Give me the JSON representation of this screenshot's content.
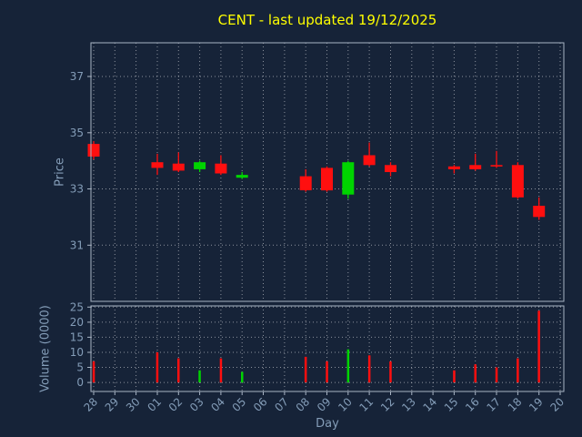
{
  "title": "CENT - last updated 19/12/2025",
  "colors": {
    "background": "#162338",
    "title": "#ffff00",
    "axis_text": "#849db8",
    "grid": "#ffffff",
    "spine": "#a8b4c4",
    "up": "#00d400",
    "down": "#ff0f0f"
  },
  "chart_data": [
    {
      "type": "candlestick",
      "panel": "price",
      "title": "CENT - last updated 19/12/2025",
      "ylabel": "Price",
      "ylim": [
        29.0,
        38.2
      ],
      "yticks": [
        31,
        33,
        35,
        37
      ],
      "grid": true,
      "categories": [
        "28",
        "29",
        "30",
        "01",
        "02",
        "03",
        "04",
        "05",
        "06",
        "07",
        "08",
        "09",
        "10",
        "11",
        "12",
        "13",
        "14",
        "15",
        "16",
        "17",
        "18",
        "19",
        "20"
      ],
      "candles": [
        {
          "day": "28",
          "open": 34.6,
          "high": 34.7,
          "low": 34.05,
          "close": 34.15
        },
        {
          "day": "01",
          "open": 33.95,
          "high": 34.25,
          "low": 33.5,
          "close": 33.75
        },
        {
          "day": "02",
          "open": 33.9,
          "high": 34.3,
          "low": 33.6,
          "close": 33.65
        },
        {
          "day": "03",
          "open": 33.7,
          "high": 34.0,
          "low": 33.6,
          "close": 33.95
        },
        {
          "day": "04",
          "open": 33.9,
          "high": 34.2,
          "low": 33.5,
          "close": 33.55
        },
        {
          "day": "05",
          "open": 33.4,
          "high": 33.6,
          "low": 33.35,
          "close": 33.5
        },
        {
          "day": "08",
          "open": 33.45,
          "high": 33.7,
          "low": 32.9,
          "close": 32.95
        },
        {
          "day": "09",
          "open": 33.75,
          "high": 33.8,
          "low": 32.9,
          "close": 32.95
        },
        {
          "day": "10",
          "open": 32.8,
          "high": 34.0,
          "low": 32.65,
          "close": 33.95
        },
        {
          "day": "11",
          "open": 34.2,
          "high": 34.65,
          "low": 33.8,
          "close": 33.85
        },
        {
          "day": "12",
          "open": 33.85,
          "high": 33.95,
          "low": 33.45,
          "close": 33.6
        },
        {
          "day": "15",
          "open": 33.8,
          "high": 33.85,
          "low": 33.55,
          "close": 33.7
        },
        {
          "day": "16",
          "open": 33.85,
          "high": 34.25,
          "low": 33.65,
          "close": 33.7
        },
        {
          "day": "17",
          "open": 33.85,
          "high": 34.35,
          "low": 33.75,
          "close": 33.8
        },
        {
          "day": "18",
          "open": 33.85,
          "high": 33.95,
          "low": 32.65,
          "close": 32.7
        },
        {
          "day": "19",
          "open": 32.4,
          "high": 32.7,
          "low": 31.9,
          "close": 32.0
        }
      ]
    },
    {
      "type": "bar",
      "panel": "volume",
      "ylabel": "Volume (0000)",
      "xlabel": "Day",
      "ylim": [
        -3.0,
        25.4
      ],
      "yticks": [
        0,
        5,
        10,
        15,
        20,
        25
      ],
      "grid": true,
      "categories": [
        "28",
        "29",
        "30",
        "01",
        "02",
        "03",
        "04",
        "05",
        "06",
        "07",
        "08",
        "09",
        "10",
        "11",
        "12",
        "13",
        "14",
        "15",
        "16",
        "17",
        "18",
        "19",
        "20"
      ],
      "bars": [
        {
          "day": "28",
          "value": 7,
          "direction": "down"
        },
        {
          "day": "01",
          "value": 10,
          "direction": "down"
        },
        {
          "day": "02",
          "value": 8,
          "direction": "down"
        },
        {
          "day": "03",
          "value": 4,
          "direction": "up"
        },
        {
          "day": "04",
          "value": 8,
          "direction": "down"
        },
        {
          "day": "05",
          "value": 3.5,
          "direction": "up"
        },
        {
          "day": "08",
          "value": 8.5,
          "direction": "down"
        },
        {
          "day": "09",
          "value": 7,
          "direction": "down"
        },
        {
          "day": "10",
          "value": 11,
          "direction": "up"
        },
        {
          "day": "11",
          "value": 9,
          "direction": "down"
        },
        {
          "day": "12",
          "value": 7,
          "direction": "down"
        },
        {
          "day": "15",
          "value": 4,
          "direction": "down"
        },
        {
          "day": "16",
          "value": 6,
          "direction": "down"
        },
        {
          "day": "17",
          "value": 5,
          "direction": "down"
        },
        {
          "day": "18",
          "value": 8,
          "direction": "down"
        },
        {
          "day": "19",
          "value": 23.8,
          "direction": "down"
        }
      ]
    }
  ]
}
